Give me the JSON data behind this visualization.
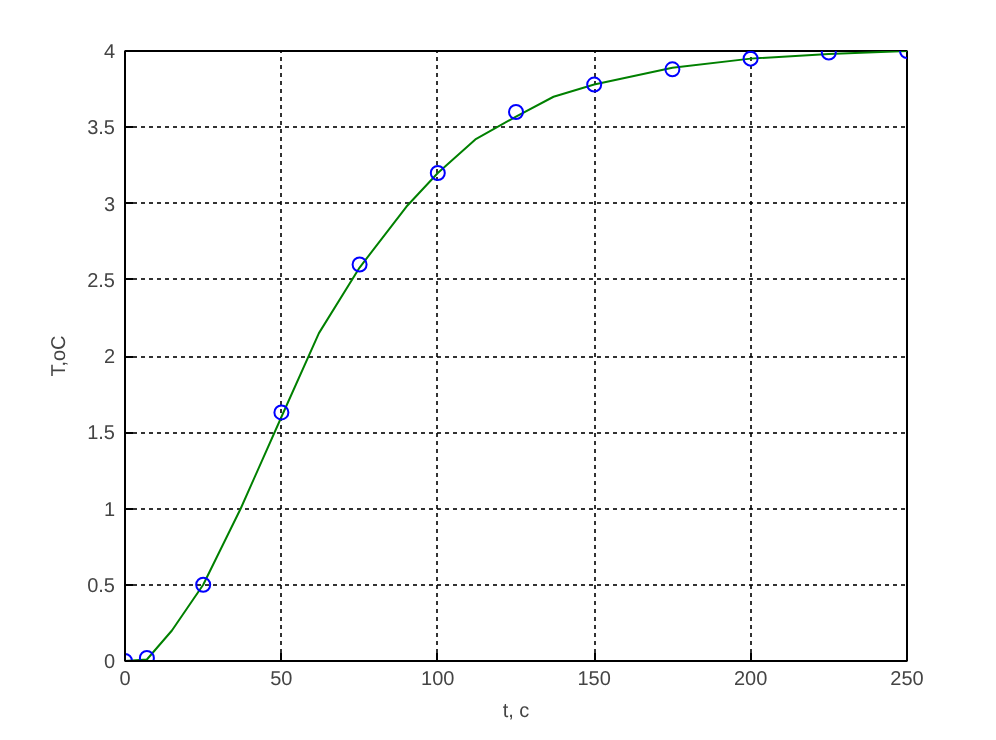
{
  "chart_data": {
    "type": "scatter",
    "xlabel": "t, c",
    "ylabel": "T,oC",
    "xlim": [
      0,
      250
    ],
    "xticks": [
      0,
      50,
      100,
      150,
      200,
      250
    ],
    "ylim": [
      0,
      4
    ],
    "yticks": [
      0,
      0.5,
      1,
      1.5,
      2,
      2.5,
      3,
      3.5,
      4
    ],
    "grid": true,
    "marker": "circle",
    "series": [
      {
        "type": "line",
        "marker": "none",
        "color": "#008000",
        "x": [
          0,
          7,
          15,
          25,
          37,
          50,
          62,
          75,
          90,
          100,
          112,
          125,
          137,
          150,
          175,
          200,
          225,
          250
        ],
        "values": [
          0,
          0.01,
          0.2,
          0.5,
          1.0,
          1.6,
          2.15,
          2.58,
          2.98,
          3.2,
          3.42,
          3.57,
          3.7,
          3.78,
          3.89,
          3.95,
          3.98,
          4.0
        ]
      },
      {
        "color": "#0000ff",
        "x": [
          0,
          7,
          25,
          50,
          75,
          100,
          125,
          150,
          175,
          200,
          225,
          250
        ],
        "values": [
          0,
          0.02,
          0.5,
          1.63,
          2.6,
          3.2,
          3.6,
          3.78,
          3.88,
          3.95,
          3.99,
          4.0
        ]
      }
    ]
  }
}
